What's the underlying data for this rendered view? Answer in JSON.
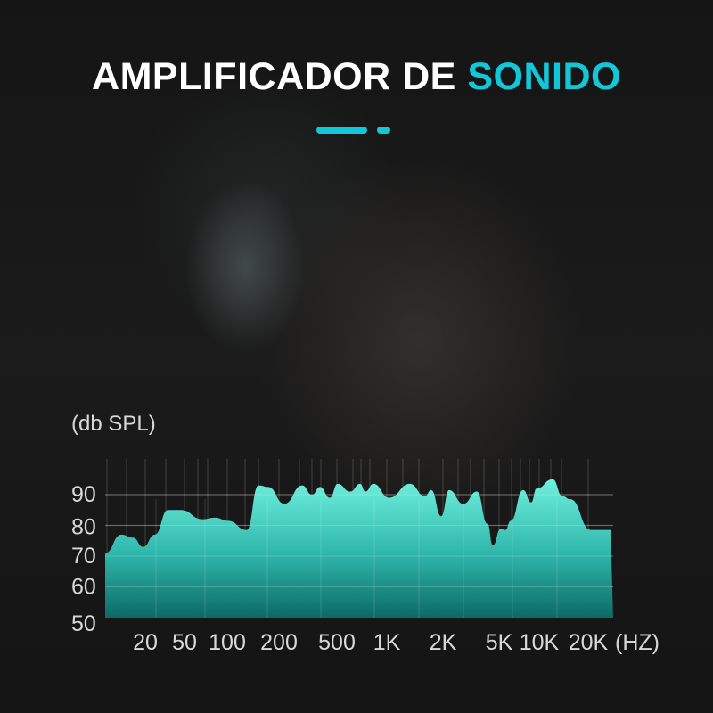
{
  "title": {
    "part1": "AMPLIFICADOR DE ",
    "part2": "SONIDO"
  },
  "colors": {
    "accent": "#12c8d8",
    "fill_top": "#6ff0dc",
    "fill_bottom": "#0c5e5a"
  },
  "chart_data": {
    "type": "area",
    "ylabel": "(db SPL)",
    "xunit": "(HZ)",
    "xscale": "log",
    "ylim": [
      50,
      100
    ],
    "yticks": [
      50,
      60,
      70,
      80,
      90
    ],
    "xticks": [
      {
        "value": 20,
        "label": "20"
      },
      {
        "value": 50,
        "label": "50"
      },
      {
        "value": 100,
        "label": "100"
      },
      {
        "value": 200,
        "label": "200"
      },
      {
        "value": 500,
        "label": "500"
      },
      {
        "value": 1000,
        "label": "1K"
      },
      {
        "value": 2000,
        "label": "2K"
      },
      {
        "value": 5000,
        "label": "5K"
      },
      {
        "value": 10000,
        "label": "10K"
      },
      {
        "value": 20000,
        "label": "20K"
      }
    ],
    "grid": true,
    "series": [
      {
        "x": [
          7.8,
          11.4,
          15,
          19,
          25,
          34,
          46,
          67,
          82,
          101,
          130,
          152,
          173,
          218,
          289,
          337,
          383,
          447,
          506,
          602,
          690,
          743,
          830,
          1030,
          1330,
          1600,
          1730,
          1960,
          2210,
          2790,
          3480,
          4140,
          4510,
          5150,
          5570,
          6110,
          7580,
          8710,
          9550,
          12100,
          13900,
          15500,
          20800,
          27400
        ],
        "y": [
          71,
          77,
          76,
          73,
          77,
          85,
          85,
          82,
          82.5,
          81.5,
          78.5,
          93,
          92.5,
          87,
          93,
          90,
          92.5,
          89,
          93.5,
          91,
          93.5,
          91,
          93.5,
          89,
          93.5,
          89.5,
          91.5,
          83,
          91.5,
          87,
          91,
          80.5,
          73.5,
          79,
          78.5,
          81.5,
          91.5,
          87.5,
          92,
          95,
          89.5,
          88.5,
          78.5,
          78.5
        ]
      }
    ]
  }
}
